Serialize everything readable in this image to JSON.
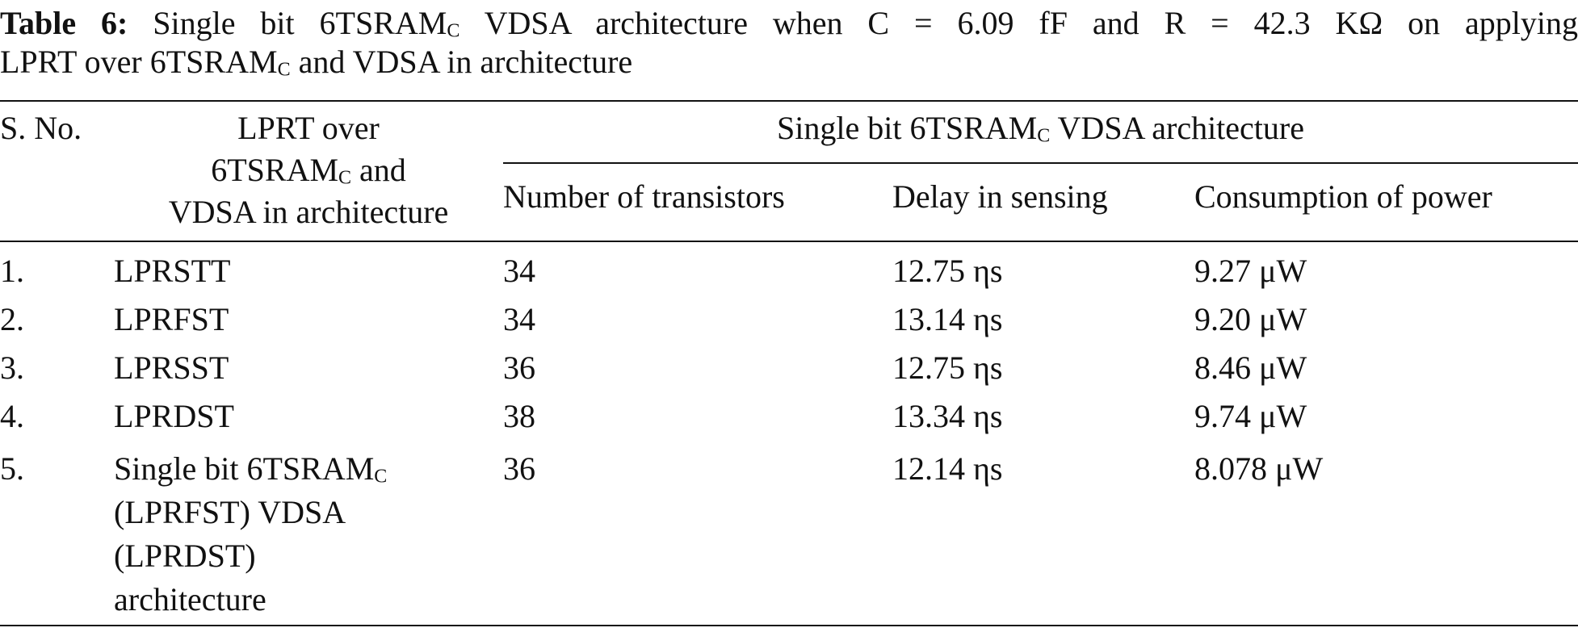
{
  "caption": {
    "label": "Table 6:",
    "parts": [
      " Single bit 6TSRAM",
      "C",
      " VDSA architecture when C = 6.09 fF and R = 42.3 KΩ on applying",
      "LPRT over 6TSRAM",
      "C",
      " and VDSA in architecture"
    ]
  },
  "table": {
    "header": {
      "sno": "S. No.",
      "technique": [
        "LPRT over",
        "6TSRAM",
        "C",
        " and",
        "VDSA in architecture"
      ],
      "group": [
        "Single bit 6TSRAM",
        "C",
        " VDSA architecture"
      ],
      "columns": [
        "Number of transistors",
        "Delay in sensing",
        "Consumption of power"
      ]
    },
    "rows": [
      [
        "1.",
        "LPRSTT",
        "34",
        "12.75 ηs",
        "9.27 μW"
      ],
      [
        "2.",
        "LPRFST",
        "34",
        "13.14 ηs",
        "9.20 μW"
      ],
      [
        "3.",
        "LPRSST",
        "36",
        "12.75 ηs",
        "8.46 μW"
      ],
      [
        "4.",
        "LPRDST",
        "38",
        "13.34 ηs",
        "9.74 μW"
      ],
      [
        "5.",
        [
          "Single bit 6TSRAM",
          "C",
          "(LPRFST) VDSA",
          "(LPRDST)",
          "architecture"
        ],
        "36",
        "12.14 ηs",
        "8.078 μW"
      ]
    ]
  }
}
